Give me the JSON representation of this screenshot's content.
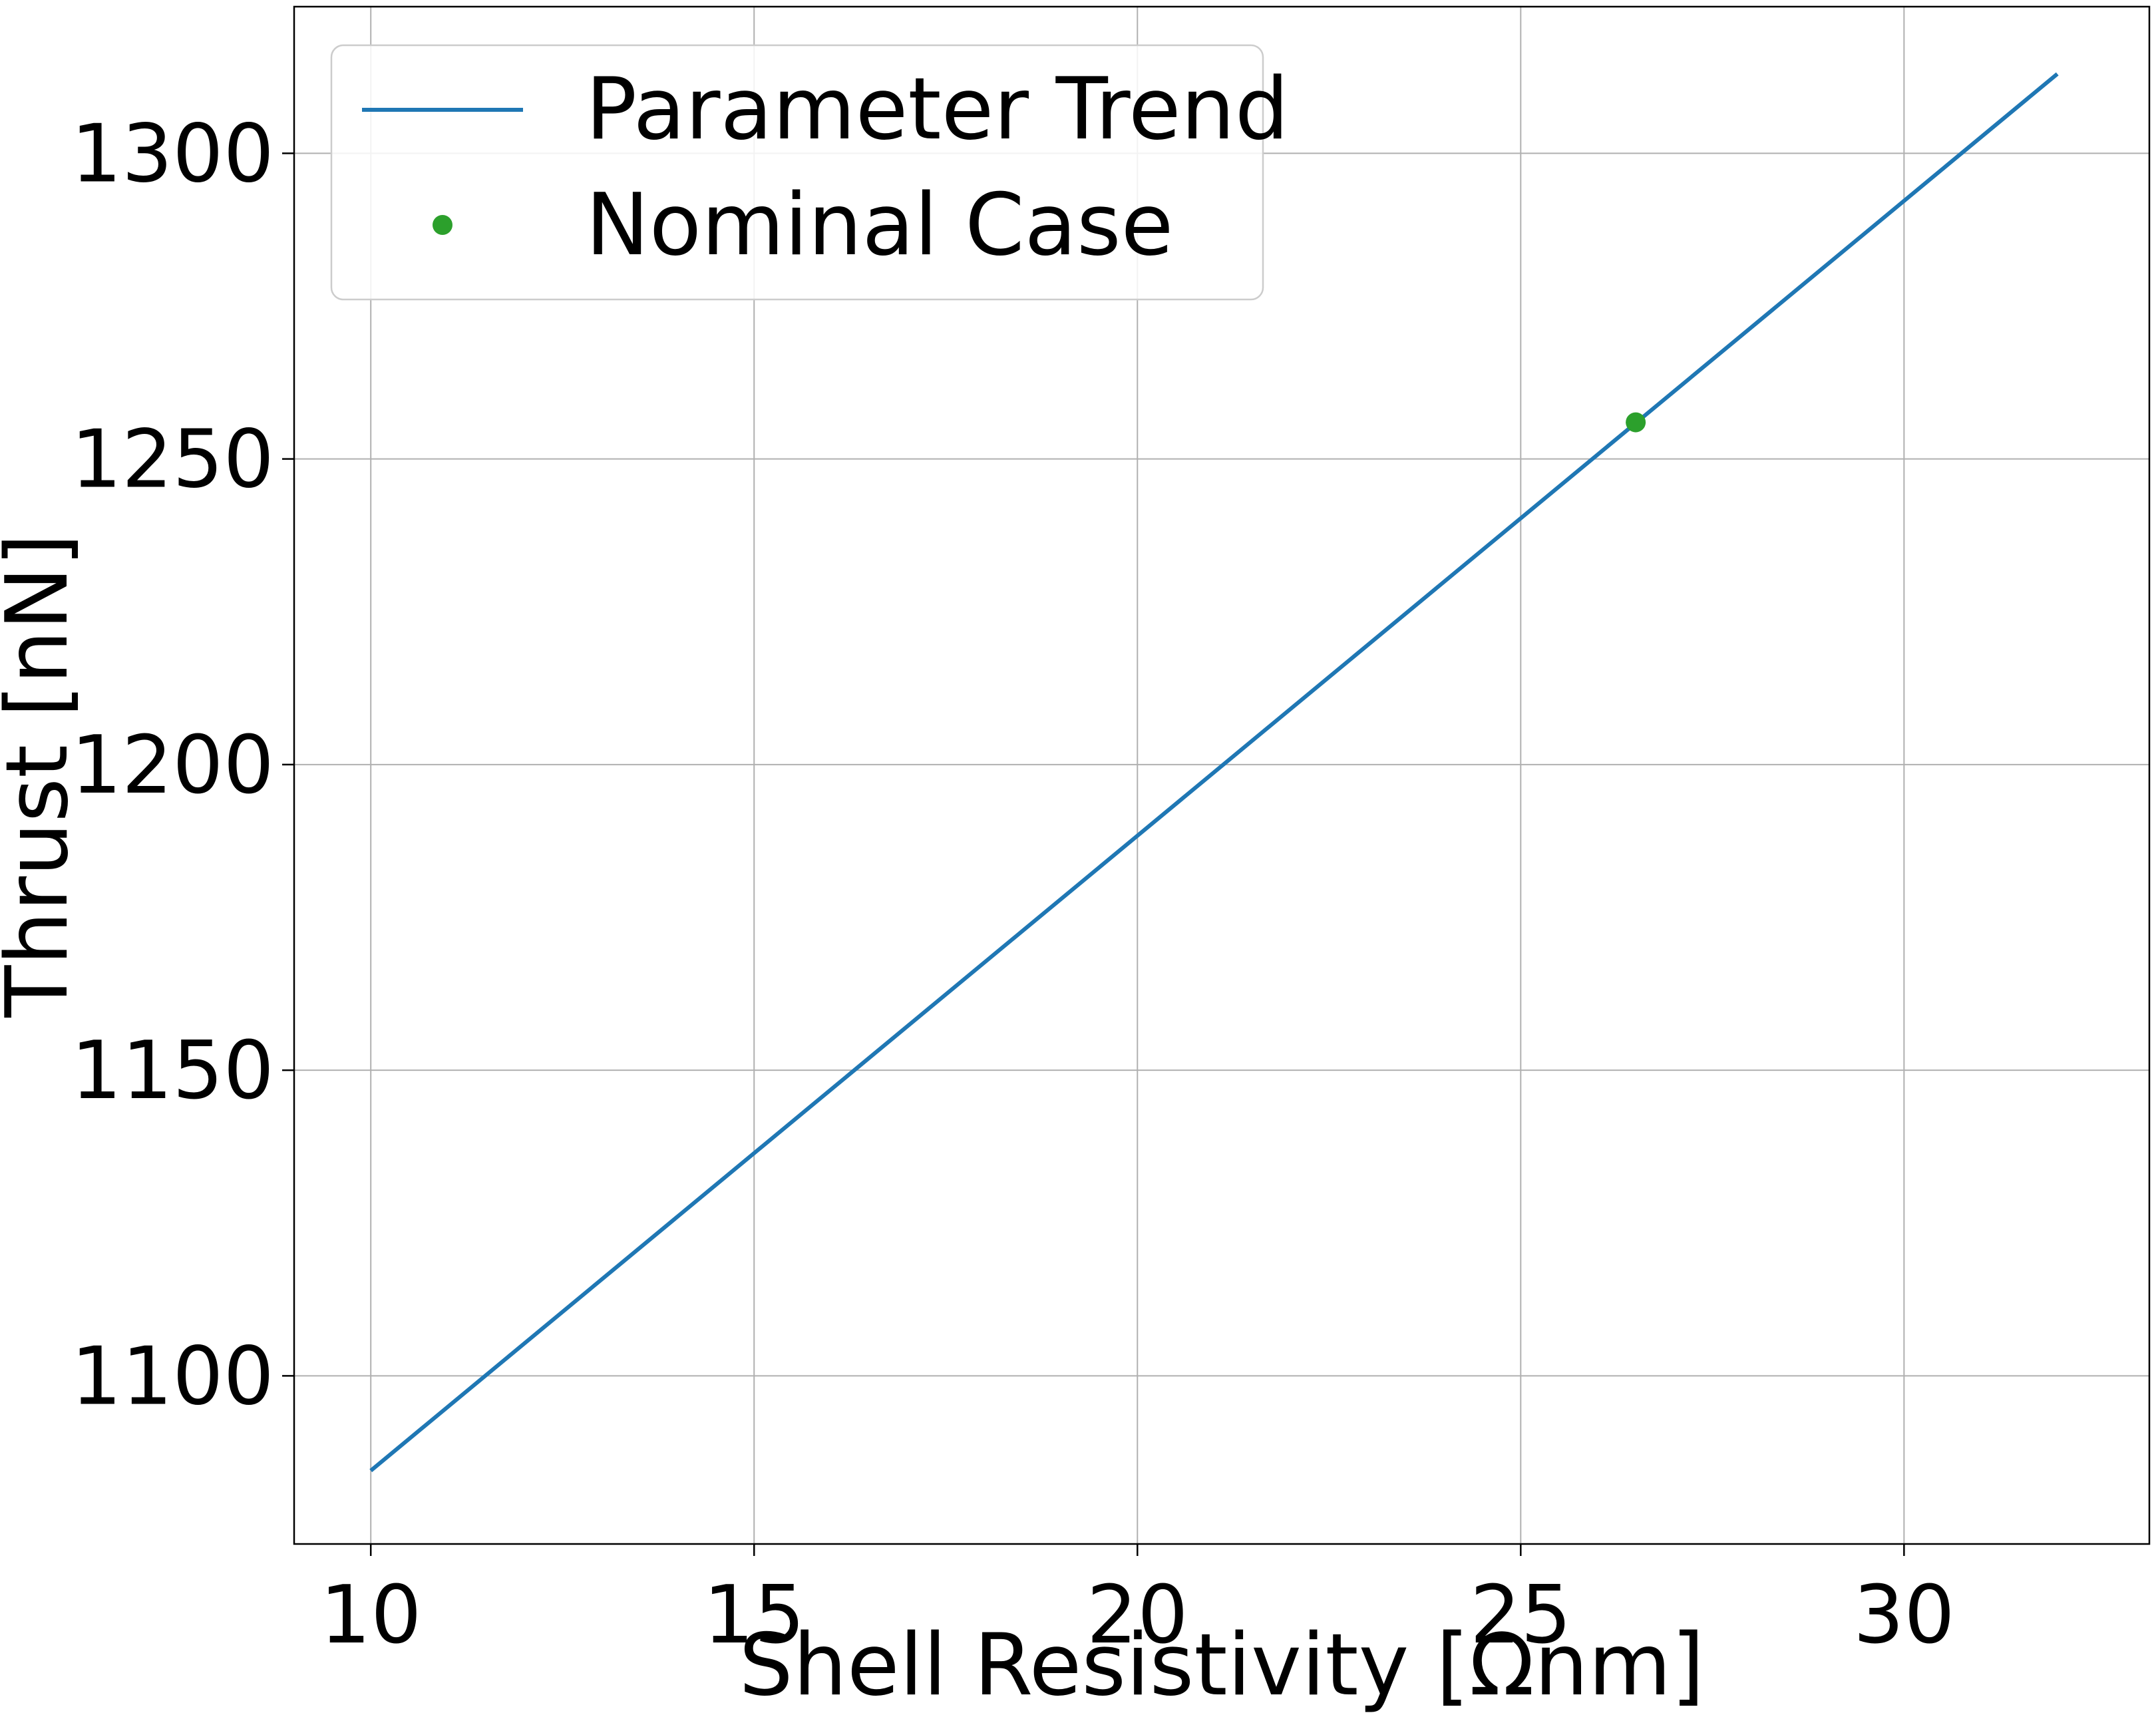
{
  "chart_data": {
    "type": "line",
    "title": "",
    "xlabel": "Shell Resistivity [Ωnm]",
    "ylabel": "Thrust [nN]",
    "xlim": [
      9,
      33.2
    ],
    "ylim": [
      1072.5,
      1324
    ],
    "xticks": [
      10,
      15,
      20,
      25,
      30
    ],
    "yticks": [
      1100,
      1150,
      1200,
      1250,
      1300
    ],
    "xtick_labels": [
      "10",
      "15",
      "20",
      "25",
      "30"
    ],
    "ytick_labels": [
      "1100",
      "1150",
      "1200",
      "1250",
      "1300"
    ],
    "grid": true,
    "legend_position": "top-left",
    "series": [
      {
        "name": "Parameter Trend",
        "kind": "line",
        "color": "#1f77b4",
        "x": [
          10,
          32
        ],
        "y": [
          1084.5,
          1313
        ]
      },
      {
        "name": "Nominal Case",
        "kind": "marker",
        "color": "#2ca02c",
        "x": [
          26.5
        ],
        "y": [
          1256
        ]
      }
    ]
  }
}
